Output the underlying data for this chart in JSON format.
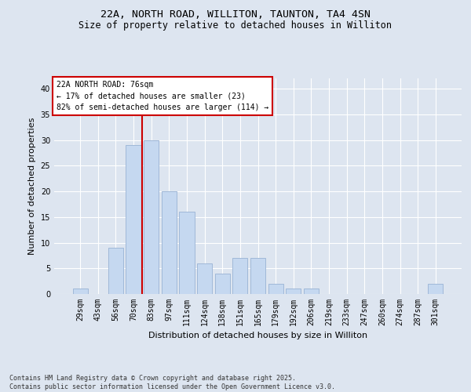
{
  "title_line1": "22A, NORTH ROAD, WILLITON, TAUNTON, TA4 4SN",
  "title_line2": "Size of property relative to detached houses in Williton",
  "xlabel": "Distribution of detached houses by size in Williton",
  "ylabel": "Number of detached properties",
  "categories": [
    "29sqm",
    "43sqm",
    "56sqm",
    "70sqm",
    "83sqm",
    "97sqm",
    "111sqm",
    "124sqm",
    "138sqm",
    "151sqm",
    "165sqm",
    "179sqm",
    "192sqm",
    "206sqm",
    "219sqm",
    "233sqm",
    "247sqm",
    "260sqm",
    "274sqm",
    "287sqm",
    "301sqm"
  ],
  "values": [
    1,
    0,
    9,
    29,
    30,
    20,
    16,
    6,
    4,
    7,
    7,
    2,
    1,
    1,
    0,
    0,
    0,
    0,
    0,
    0,
    2
  ],
  "bar_color": "#c5d8f0",
  "bar_edge_color": "#a0b8d8",
  "vline_x_index": 3.5,
  "vline_color": "#cc0000",
  "annotation_text": "22A NORTH ROAD: 76sqm\n← 17% of detached houses are smaller (23)\n82% of semi-detached houses are larger (114) →",
  "annotation_box_color": "#ffffff",
  "annotation_box_edge": "#cc0000",
  "ylim": [
    0,
    42
  ],
  "yticks": [
    0,
    5,
    10,
    15,
    20,
    25,
    30,
    35,
    40
  ],
  "background_color": "#dde5f0",
  "plot_background": "#dde5f0",
  "footer_text": "Contains HM Land Registry data © Crown copyright and database right 2025.\nContains public sector information licensed under the Open Government Licence v3.0.",
  "grid_color": "#ffffff",
  "title_fontsize": 9.5,
  "subtitle_fontsize": 8.5,
  "tick_fontsize": 7,
  "label_fontsize": 8,
  "annotation_fontsize": 7,
  "footer_fontsize": 6
}
